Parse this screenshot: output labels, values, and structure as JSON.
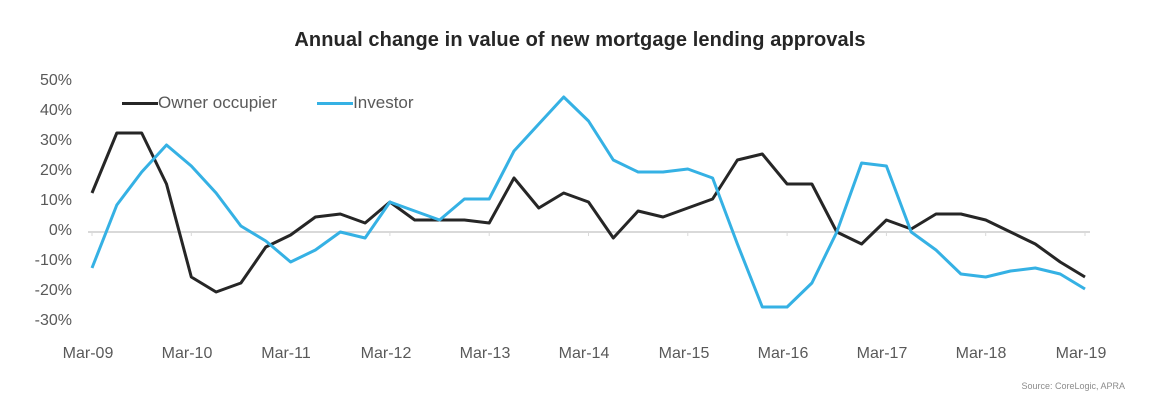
{
  "chart_data": {
    "type": "line",
    "title": "Annual change in value of new mortgage lending approvals",
    "xlabel": "",
    "ylabel": "",
    "ylim": [
      -30,
      50
    ],
    "yticks": [
      "50%",
      "40%",
      "30%",
      "20%",
      "10%",
      "0%",
      "-10%",
      "-20%",
      "-30%"
    ],
    "xticks": [
      "Mar-09",
      "Mar-10",
      "Mar-11",
      "Mar-12",
      "Mar-13",
      "Mar-14",
      "Mar-15",
      "Mar-16",
      "Mar-17",
      "Mar-18",
      "Mar-19"
    ],
    "x_frequency": "quarterly",
    "x": [
      "Mar-09",
      "Jun-09",
      "Sep-09",
      "Dec-09",
      "Mar-10",
      "Jun-10",
      "Sep-10",
      "Dec-10",
      "Mar-11",
      "Jun-11",
      "Sep-11",
      "Dec-11",
      "Mar-12",
      "Jun-12",
      "Sep-12",
      "Dec-12",
      "Mar-13",
      "Jun-13",
      "Sep-13",
      "Dec-13",
      "Mar-14",
      "Jun-14",
      "Sep-14",
      "Dec-14",
      "Mar-15",
      "Jun-15",
      "Sep-15",
      "Dec-15",
      "Mar-16",
      "Jun-16",
      "Sep-16",
      "Dec-16",
      "Mar-17",
      "Jun-17",
      "Sep-17",
      "Dec-17",
      "Mar-18",
      "Jun-18",
      "Sep-18",
      "Dec-18",
      "Mar-19"
    ],
    "series": [
      {
        "name": "Owner occupier",
        "color": "#262626",
        "values": [
          13,
          33,
          33,
          16,
          -15,
          -20,
          -17,
          -5,
          -1,
          5,
          6,
          3,
          10,
          4,
          4,
          4,
          3,
          18,
          8,
          13,
          10,
          -2,
          7,
          5,
          8,
          11,
          24,
          26,
          16,
          16,
          0,
          -4,
          4,
          1,
          6,
          6,
          4,
          0,
          -4,
          -10,
          -15
        ]
      },
      {
        "name": "Investor",
        "color": "#35b1e4",
        "values": [
          -12,
          9,
          20,
          29,
          22,
          13,
          2,
          -3,
          -10,
          -6,
          0,
          -2,
          10,
          7,
          4,
          11,
          11,
          27,
          36,
          45,
          37,
          24,
          20,
          20,
          21,
          18,
          -4,
          -25,
          -25,
          -17,
          0,
          23,
          22,
          0,
          -6,
          -14,
          -15,
          -13,
          -12,
          -14,
          -19
        ]
      }
    ],
    "grid": false,
    "zero_line": true,
    "legend_position": "top-left, inside plot",
    "source": "Source: CoreLogic, APRA"
  },
  "colors": {
    "owner": "#262626",
    "investor": "#35b1e4",
    "zero_line": "#d9d9d9"
  }
}
